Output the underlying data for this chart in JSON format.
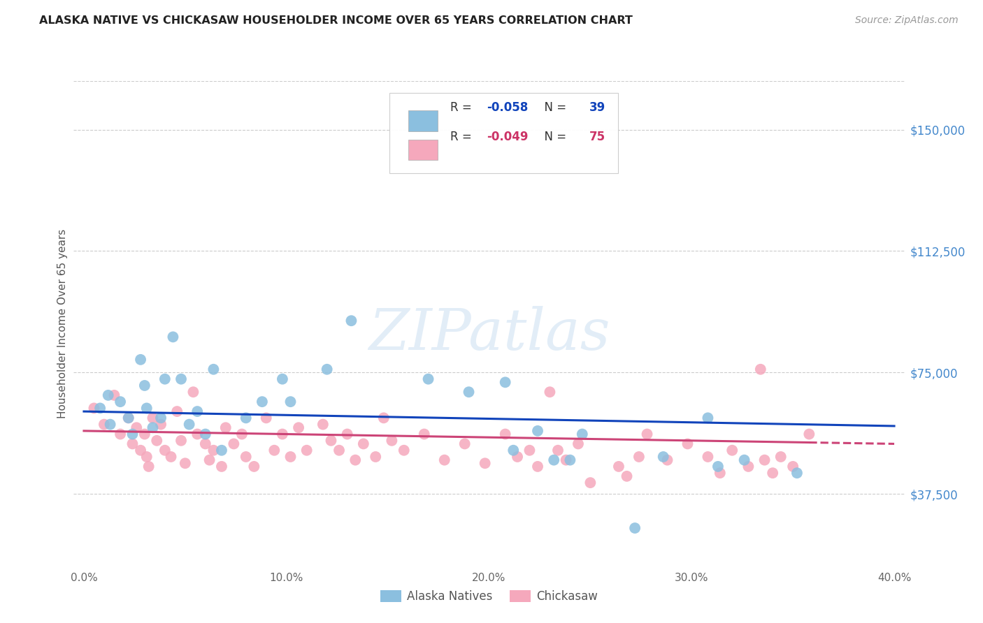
{
  "title": "ALASKA NATIVE VS CHICKASAW HOUSEHOLDER INCOME OVER 65 YEARS CORRELATION CHART",
  "source": "Source: ZipAtlas.com",
  "ylabel_label": "Householder Income Over 65 years",
  "x_tick_labels": [
    "0.0%",
    "10.0%",
    "20.0%",
    "30.0%",
    "40.0%"
  ],
  "x_tick_values": [
    0.0,
    0.1,
    0.2,
    0.3,
    0.4
  ],
  "y_tick_labels": [
    "$37,500",
    "$75,000",
    "$112,500",
    "$150,000"
  ],
  "y_tick_values": [
    37500,
    75000,
    112500,
    150000
  ],
  "xlim": [
    -0.005,
    0.405
  ],
  "ylim": [
    15000,
    165000
  ],
  "background_color": "#ffffff",
  "grid_color": "#cccccc",
  "alaska_color": "#8bbfdf",
  "chickasaw_color": "#f5a8bc",
  "alaska_line_color": "#1144bb",
  "chickasaw_line_color": "#cc4477",
  "legend_bottom_alaska": "Alaska Natives",
  "legend_bottom_chickasaw": "Chickasaw",
  "watermark": "ZIPatlas",
  "alaska_R": -0.058,
  "alaska_N": 39,
  "chickasaw_R": -0.049,
  "chickasaw_N": 75,
  "alaska_x": [
    0.008,
    0.012,
    0.013,
    0.018,
    0.022,
    0.024,
    0.028,
    0.03,
    0.031,
    0.034,
    0.038,
    0.04,
    0.044,
    0.048,
    0.052,
    0.056,
    0.06,
    0.064,
    0.068,
    0.08,
    0.088,
    0.098,
    0.102,
    0.12,
    0.132,
    0.17,
    0.19,
    0.208,
    0.212,
    0.224,
    0.232,
    0.24,
    0.246,
    0.272,
    0.286,
    0.308,
    0.313,
    0.326,
    0.352
  ],
  "alaska_y": [
    64000,
    68000,
    59000,
    66000,
    61000,
    56000,
    79000,
    71000,
    64000,
    58000,
    61000,
    73000,
    86000,
    73000,
    59000,
    63000,
    56000,
    76000,
    51000,
    61000,
    66000,
    73000,
    66000,
    76000,
    91000,
    73000,
    69000,
    72000,
    51000,
    57000,
    48000,
    48000,
    56000,
    27000,
    49000,
    61000,
    46000,
    48000,
    44000
  ],
  "chickasaw_x": [
    0.005,
    0.01,
    0.015,
    0.018,
    0.022,
    0.024,
    0.026,
    0.028,
    0.03,
    0.031,
    0.032,
    0.034,
    0.036,
    0.038,
    0.04,
    0.043,
    0.046,
    0.048,
    0.05,
    0.054,
    0.056,
    0.06,
    0.062,
    0.064,
    0.068,
    0.07,
    0.074,
    0.078,
    0.08,
    0.084,
    0.09,
    0.094,
    0.098,
    0.102,
    0.106,
    0.11,
    0.118,
    0.122,
    0.126,
    0.13,
    0.134,
    0.138,
    0.144,
    0.148,
    0.152,
    0.158,
    0.168,
    0.178,
    0.188,
    0.198,
    0.208,
    0.214,
    0.22,
    0.224,
    0.23,
    0.234,
    0.238,
    0.244,
    0.25,
    0.264,
    0.268,
    0.274,
    0.278,
    0.288,
    0.298,
    0.308,
    0.314,
    0.32,
    0.328,
    0.334,
    0.336,
    0.34,
    0.344,
    0.35,
    0.358
  ],
  "chickasaw_y": [
    64000,
    59000,
    68000,
    56000,
    61000,
    53000,
    58000,
    51000,
    56000,
    49000,
    46000,
    61000,
    54000,
    59000,
    51000,
    49000,
    63000,
    54000,
    47000,
    69000,
    56000,
    53000,
    48000,
    51000,
    46000,
    58000,
    53000,
    56000,
    49000,
    46000,
    61000,
    51000,
    56000,
    49000,
    58000,
    51000,
    59000,
    54000,
    51000,
    56000,
    48000,
    53000,
    49000,
    61000,
    54000,
    51000,
    56000,
    48000,
    53000,
    47000,
    56000,
    49000,
    51000,
    46000,
    69000,
    51000,
    48000,
    53000,
    41000,
    46000,
    43000,
    49000,
    56000,
    48000,
    53000,
    49000,
    44000,
    51000,
    46000,
    76000,
    48000,
    44000,
    49000,
    46000,
    56000
  ]
}
